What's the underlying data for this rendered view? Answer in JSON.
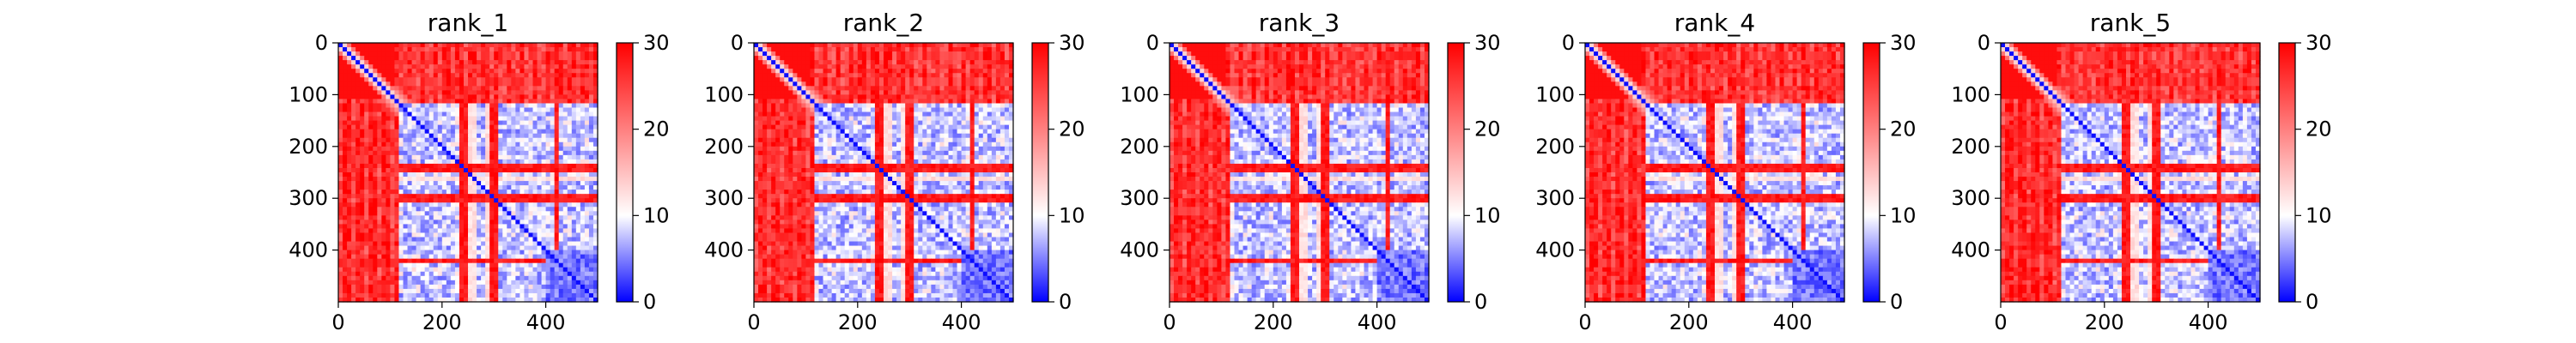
{
  "chart_data": [
    {
      "type": "heatmap",
      "title": "rank_1",
      "xlabel": "",
      "ylabel": "",
      "xlim": [
        0,
        500
      ],
      "ylim": [
        500,
        0
      ],
      "xticks": [
        0,
        200,
        400
      ],
      "yticks": [
        0,
        100,
        200,
        300,
        400
      ],
      "colorbar": {
        "range": [
          0,
          30
        ],
        "ticks": [
          0,
          10,
          20,
          30
        ],
        "colors": [
          "#0000ff",
          "#ffffff",
          "#ff0000"
        ]
      },
      "blocks": [
        [
          120,
          250
        ],
        [
          290,
          420
        ],
        [
          430,
          500
        ]
      ],
      "hot_bands": [
        240,
        300,
        420
      ],
      "grid": false
    },
    {
      "type": "heatmap",
      "title": "rank_2",
      "xlabel": "",
      "ylabel": "",
      "xlim": [
        0,
        500
      ],
      "ylim": [
        500,
        0
      ],
      "xticks": [
        0,
        200,
        400
      ],
      "yticks": [
        0,
        100,
        200,
        300,
        400
      ],
      "colorbar": {
        "range": [
          0,
          30
        ],
        "ticks": [
          0,
          10,
          20,
          30
        ],
        "colors": [
          "#0000ff",
          "#ffffff",
          "#ff0000"
        ]
      },
      "blocks": [
        [
          120,
          250
        ],
        [
          290,
          420
        ],
        [
          430,
          500
        ]
      ],
      "hot_bands": [
        240,
        300,
        420
      ],
      "grid": false
    },
    {
      "type": "heatmap",
      "title": "rank_3",
      "xlabel": "",
      "ylabel": "",
      "xlim": [
        0,
        500
      ],
      "ylim": [
        500,
        0
      ],
      "xticks": [
        0,
        200,
        400
      ],
      "yticks": [
        0,
        100,
        200,
        300,
        400
      ],
      "colorbar": {
        "range": [
          0,
          30
        ],
        "ticks": [
          0,
          10,
          20,
          30
        ],
        "colors": [
          "#0000ff",
          "#ffffff",
          "#ff0000"
        ]
      },
      "blocks": [
        [
          120,
          250
        ],
        [
          290,
          420
        ],
        [
          430,
          500
        ]
      ],
      "hot_bands": [
        240,
        300,
        420
      ],
      "grid": false
    },
    {
      "type": "heatmap",
      "title": "rank_4",
      "xlabel": "",
      "ylabel": "",
      "xlim": [
        0,
        500
      ],
      "ylim": [
        500,
        0
      ],
      "xticks": [
        0,
        200,
        400
      ],
      "yticks": [
        0,
        100,
        200,
        300,
        400
      ],
      "colorbar": {
        "range": [
          0,
          30
        ],
        "ticks": [
          0,
          10,
          20,
          30
        ],
        "colors": [
          "#0000ff",
          "#ffffff",
          "#ff0000"
        ]
      },
      "blocks": [
        [
          120,
          250
        ],
        [
          290,
          420
        ],
        [
          430,
          500
        ]
      ],
      "hot_bands": [
        240,
        300,
        420
      ],
      "grid": false
    },
    {
      "type": "heatmap",
      "title": "rank_5",
      "xlabel": "",
      "ylabel": "",
      "xlim": [
        0,
        500
      ],
      "ylim": [
        500,
        0
      ],
      "xticks": [
        0,
        200,
        400
      ],
      "yticks": [
        0,
        100,
        200,
        300,
        400
      ],
      "colorbar": {
        "range": [
          0,
          30
        ],
        "ticks": [
          0,
          10,
          20,
          30
        ],
        "colors": [
          "#0000ff",
          "#ffffff",
          "#ff0000"
        ]
      },
      "blocks": [
        [
          120,
          250
        ],
        [
          290,
          420
        ],
        [
          430,
          500
        ]
      ],
      "hot_bands": [
        240,
        300,
        420
      ],
      "grid": false
    }
  ]
}
